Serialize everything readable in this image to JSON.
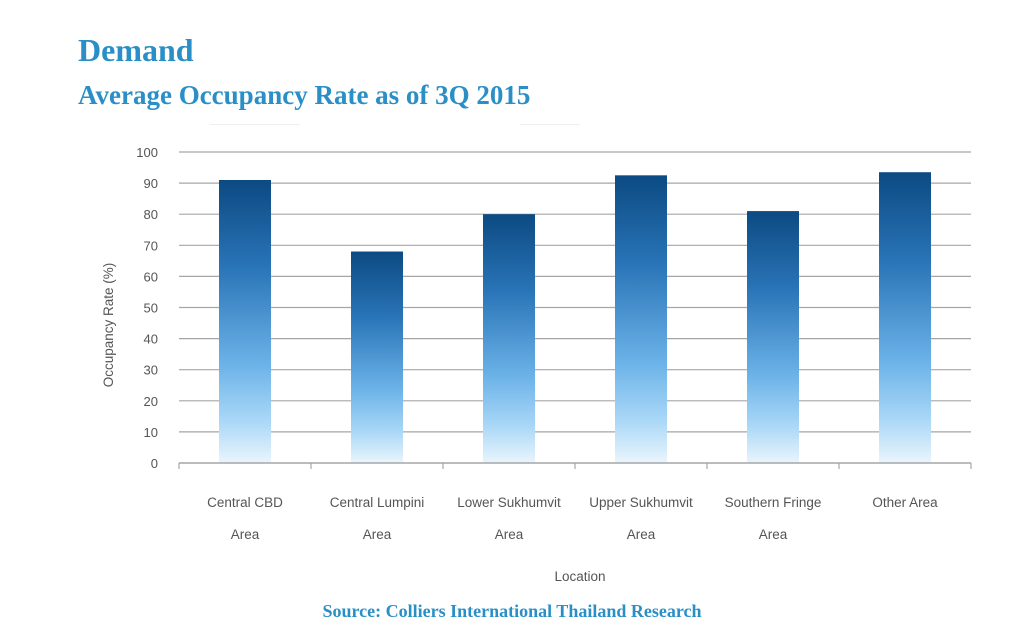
{
  "header": {
    "title": "Demand",
    "subtitle": "Average Occupancy Rate as of 3Q 2015"
  },
  "footer": {
    "source": "Source: Colliers International Thailand Research"
  },
  "colors": {
    "accent": "#2a8fc6",
    "bar_top": "#0c4a82",
    "bar_bottom": "#eaf5fc",
    "grid": "#a6a6a6"
  },
  "chart_data": {
    "type": "bar",
    "categories": [
      [
        "Central CBD",
        "Area"
      ],
      [
        "Central Lumpini",
        "Area"
      ],
      [
        "Lower Sukhumvit",
        "Area"
      ],
      [
        "Upper Sukhumvit",
        "Area"
      ],
      [
        "Southern Fringe",
        "Area"
      ],
      [
        "Other Area"
      ]
    ],
    "values": [
      91,
      68,
      80,
      92.5,
      81,
      93.5
    ],
    "xlabel": "Location",
    "ylabel": "Occupancy Rate (%)",
    "ylim": [
      0,
      100
    ],
    "yticks": [
      0,
      10,
      20,
      30,
      40,
      50,
      60,
      70,
      80,
      90,
      100
    ],
    "grid": true,
    "legend": "none"
  }
}
